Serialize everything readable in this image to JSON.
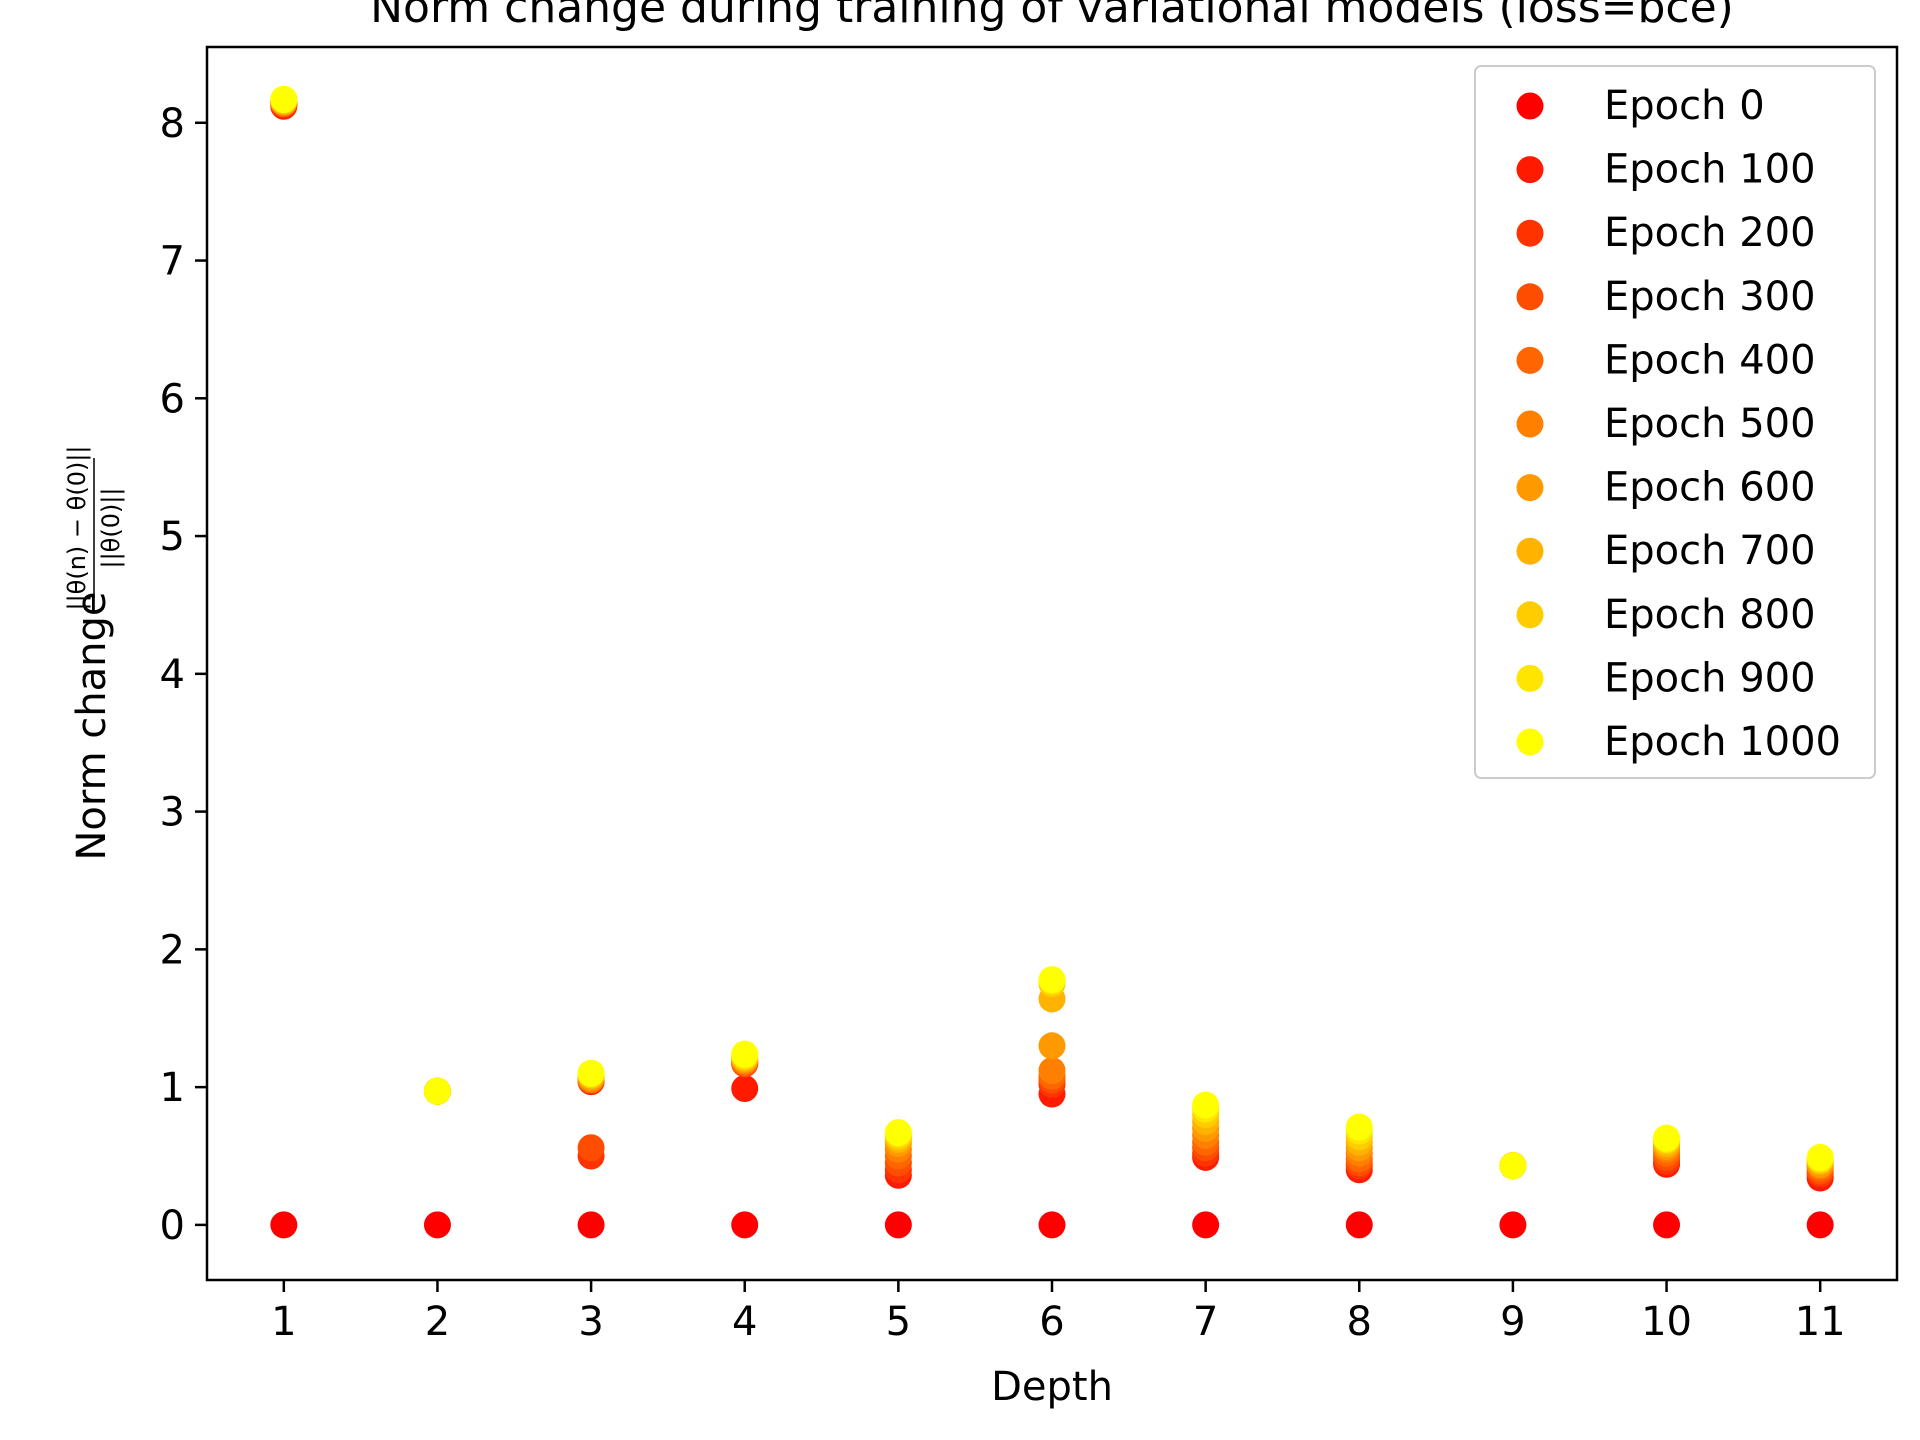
{
  "chart_data": {
    "type": "scatter",
    "title": "Norm change during training of variational models (loss=bce)",
    "xlabel": "Depth",
    "ylabel_prefix": "Norm change",
    "ylabel_fraction": {
      "numerator": "||θ(n) − θ(0)||",
      "denominator": "||θ(0)||"
    },
    "x_ticks": [
      1,
      2,
      3,
      4,
      5,
      6,
      7,
      8,
      9,
      10,
      11
    ],
    "y_ticks": [
      0,
      1,
      2,
      3,
      4,
      5,
      6,
      7,
      8
    ],
    "xlim": [
      0.5,
      11.5
    ],
    "ylim": [
      -0.4,
      8.55
    ],
    "grid": false,
    "legend_position": "top-right",
    "x": [
      1,
      2,
      3,
      4,
      5,
      6,
      7,
      8,
      9,
      10,
      11
    ],
    "series": [
      {
        "name": "Epoch 0",
        "color": "#ff0000",
        "values": [
          0,
          0,
          0,
          0,
          0,
          0,
          0,
          0,
          0,
          0,
          0
        ]
      },
      {
        "name": "Epoch 100",
        "color": "#ff1a00",
        "values": [
          8.12,
          0.97,
          1.04,
          0.99,
          0.36,
          0.95,
          0.49,
          0.4,
          0.43,
          0.44,
          0.34
        ]
      },
      {
        "name": "Epoch 200",
        "color": "#ff3300",
        "values": [
          8.13,
          0.97,
          0.5,
          1.17,
          0.4,
          1.02,
          0.52,
          0.43,
          0.43,
          0.46,
          0.37
        ]
      },
      {
        "name": "Epoch 300",
        "color": "#ff4d00",
        "values": [
          8.14,
          0.97,
          0.56,
          1.17,
          0.45,
          1.05,
          0.56,
          0.45,
          0.43,
          0.49,
          0.39
        ]
      },
      {
        "name": "Epoch 400",
        "color": "#ff6600",
        "values": [
          8.14,
          0.97,
          1.05,
          1.18,
          0.5,
          1.08,
          0.6,
          0.48,
          0.43,
          0.52,
          0.41
        ]
      },
      {
        "name": "Epoch 500",
        "color": "#ff8000",
        "values": [
          8.15,
          0.97,
          1.06,
          1.19,
          0.55,
          1.12,
          0.65,
          0.52,
          0.43,
          0.55,
          0.43
        ]
      },
      {
        "name": "Epoch 600",
        "color": "#ff9900",
        "values": [
          8.15,
          0.97,
          1.07,
          1.2,
          0.59,
          1.3,
          0.7,
          0.56,
          0.43,
          0.57,
          0.44
        ]
      },
      {
        "name": "Epoch 700",
        "color": "#ffb300",
        "values": [
          8.16,
          0.97,
          1.08,
          1.21,
          0.62,
          1.64,
          0.75,
          0.6,
          0.43,
          0.59,
          0.46
        ]
      },
      {
        "name": "Epoch 800",
        "color": "#ffcc00",
        "values": [
          8.16,
          0.97,
          1.09,
          1.22,
          0.64,
          1.75,
          0.8,
          0.64,
          0.43,
          0.61,
          0.47
        ]
      },
      {
        "name": "Epoch 900",
        "color": "#ffe600",
        "values": [
          8.17,
          0.97,
          1.1,
          1.23,
          0.66,
          1.77,
          0.84,
          0.68,
          0.43,
          0.62,
          0.48
        ]
      },
      {
        "name": "Epoch 1000",
        "color": "#ffff00",
        "values": [
          8.17,
          0.97,
          1.1,
          1.24,
          0.67,
          1.78,
          0.87,
          0.71,
          0.43,
          0.63,
          0.49
        ]
      }
    ]
  }
}
